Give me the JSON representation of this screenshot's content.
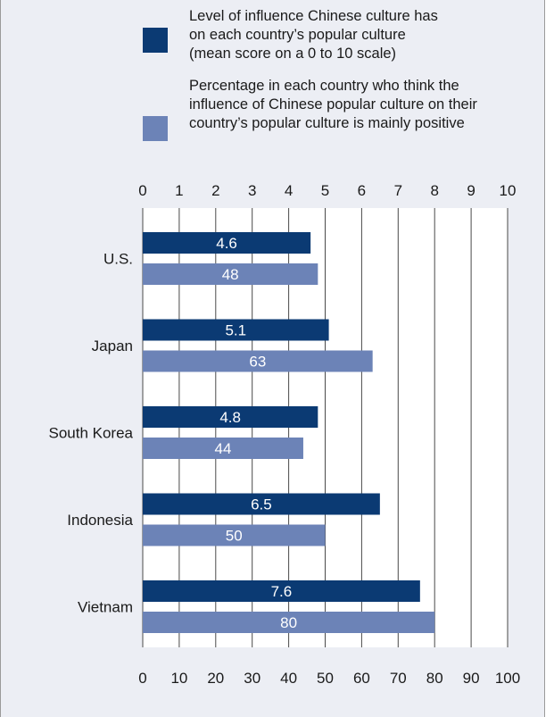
{
  "chart_data": {
    "type": "bar",
    "orientation": "horizontal",
    "categories": [
      "U.S.",
      "Japan",
      "South Korea",
      "Indonesia",
      "Vietnam"
    ],
    "series": [
      {
        "name": "Level of influence Chinese culture has on each country’s popular culture (mean score on a 0 to 10 scale)",
        "legend_lines": [
          "Level of influence Chinese culture has",
          "on each country’s popular culture",
          "(mean score on a 0 to 10 scale)"
        ],
        "values": [
          4.6,
          5.1,
          4.8,
          6.5,
          7.6
        ],
        "labels": [
          "4.6",
          "5.1",
          "4.8",
          "6.5",
          "7.6"
        ],
        "axis": "top",
        "color": "#0b3a73"
      },
      {
        "name": "Percentage in each country who think the influence of Chinese popular culture on their country’s popular culture is mainly positive",
        "legend_lines": [
          "Percentage in each country who think the",
          "influence of Chinese popular culture on their",
          "country’s popular culture is mainly positive"
        ],
        "values": [
          48,
          63,
          44,
          50,
          80
        ],
        "labels": [
          "48",
          "63",
          "44",
          "50",
          "80"
        ],
        "axis": "bottom",
        "color": "#6c83b7"
      }
    ],
    "top_axis": {
      "range": [
        0,
        10
      ],
      "ticks": [
        "0",
        "1",
        "2",
        "3",
        "4",
        "5",
        "6",
        "7",
        "8",
        "9",
        "10"
      ]
    },
    "bottom_axis": {
      "range": [
        0,
        100
      ],
      "ticks": [
        "0",
        "10",
        "20",
        "30",
        "40",
        "50",
        "60",
        "70",
        "80",
        "90",
        "100"
      ]
    },
    "grid": true,
    "legend_position": "top"
  },
  "colors": {
    "background": "#eceef4",
    "plot_background": "#ffffff",
    "gridline": "#4a4a4a",
    "dark_bar": "#0b3a73",
    "light_bar": "#6c83b7",
    "bar_label": "#ffffff"
  }
}
